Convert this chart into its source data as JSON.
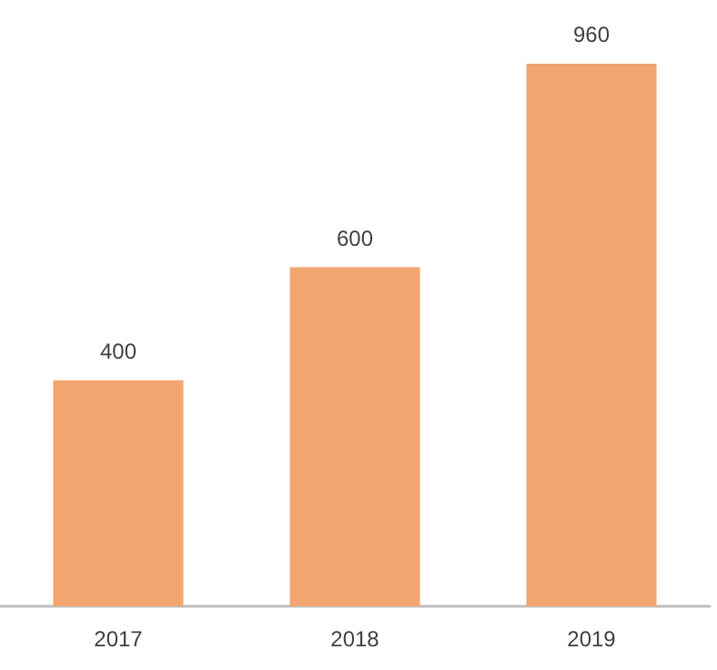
{
  "chart_data": {
    "type": "bar",
    "categories": [
      "2017",
      "2018",
      "2019"
    ],
    "values": [
      400,
      600,
      960
    ],
    "color": "#f2a56e",
    "data_labels": true,
    "grid": false
  }
}
